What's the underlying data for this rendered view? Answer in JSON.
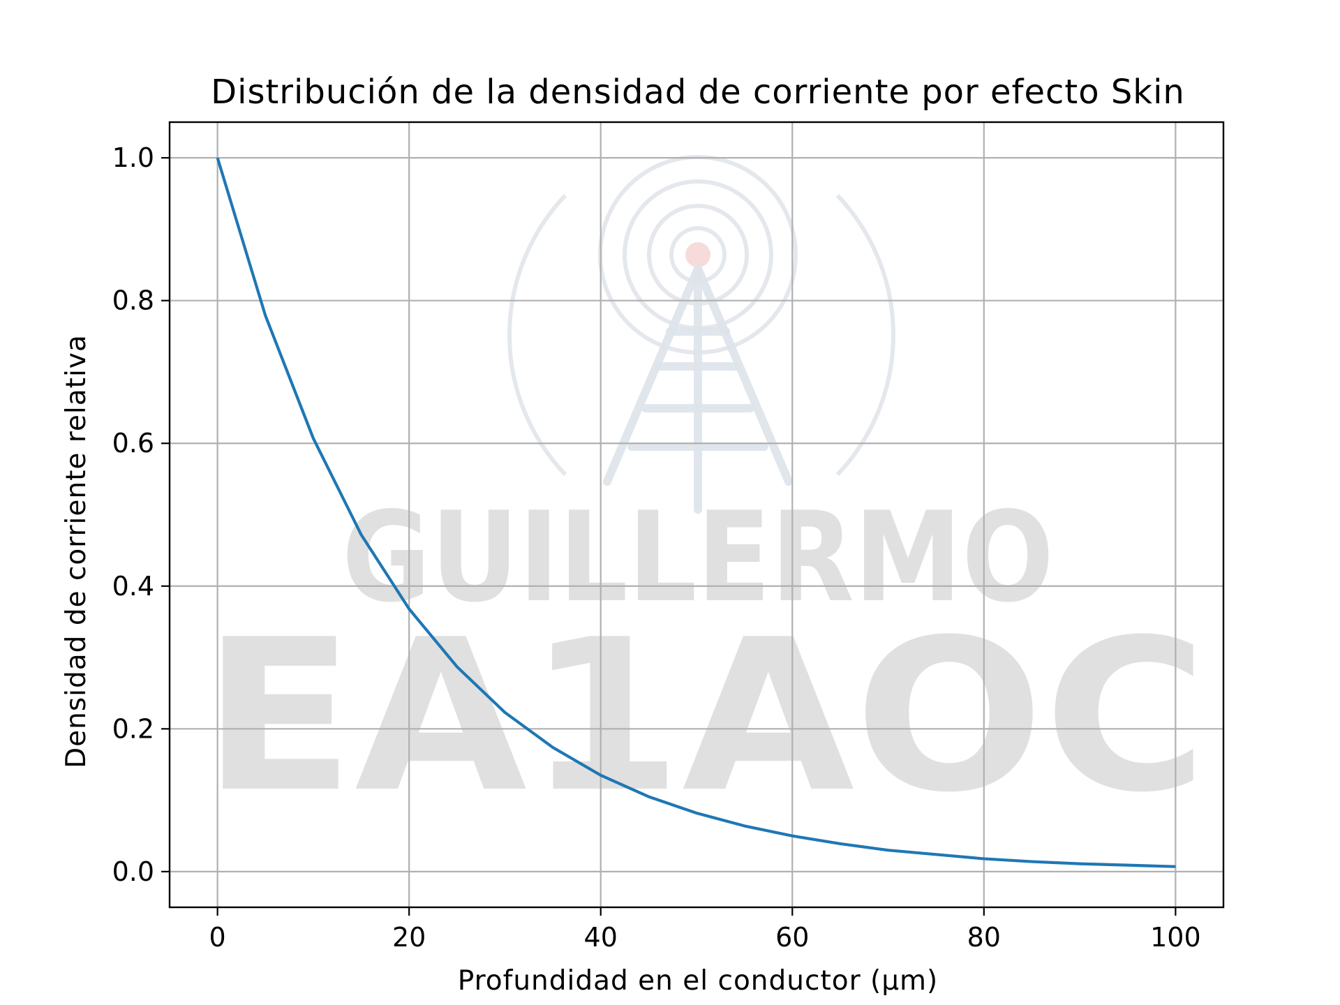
{
  "chart_data": {
    "type": "line",
    "title": "Distribución de la densidad de corriente por efecto Skin",
    "xlabel": "Profundidad en el conductor (μm)",
    "ylabel": "Densidad de corriente relativa",
    "xlim": [
      -5,
      105
    ],
    "ylim": [
      -0.05,
      1.05
    ],
    "xticks": [
      0,
      20,
      40,
      60,
      80,
      100
    ],
    "xtick_labels": [
      "0",
      "20",
      "40",
      "60",
      "80",
      "100"
    ],
    "yticks": [
      0.0,
      0.2,
      0.4,
      0.6,
      0.8,
      1.0
    ],
    "ytick_labels": [
      "0.0",
      "0.2",
      "0.4",
      "0.6",
      "0.8",
      "1.0"
    ],
    "grid": true,
    "legend": false,
    "series": [
      {
        "color": "#1f77b4",
        "x": [
          0,
          5,
          10,
          15,
          20,
          25,
          30,
          35,
          40,
          45,
          50,
          55,
          60,
          65,
          70,
          75,
          80,
          85,
          90,
          95,
          100
        ],
        "y": [
          1.0,
          0.779,
          0.607,
          0.472,
          0.368,
          0.287,
          0.223,
          0.174,
          0.135,
          0.105,
          0.082,
          0.064,
          0.05,
          0.039,
          0.03,
          0.024,
          0.018,
          0.014,
          0.011,
          0.009,
          0.007
        ]
      }
    ]
  },
  "watermark": {
    "line1": "GUILLERMO",
    "line2": "EA1AOC",
    "icon": "radio-tower-icon",
    "text_color": "#d6d6d6"
  }
}
